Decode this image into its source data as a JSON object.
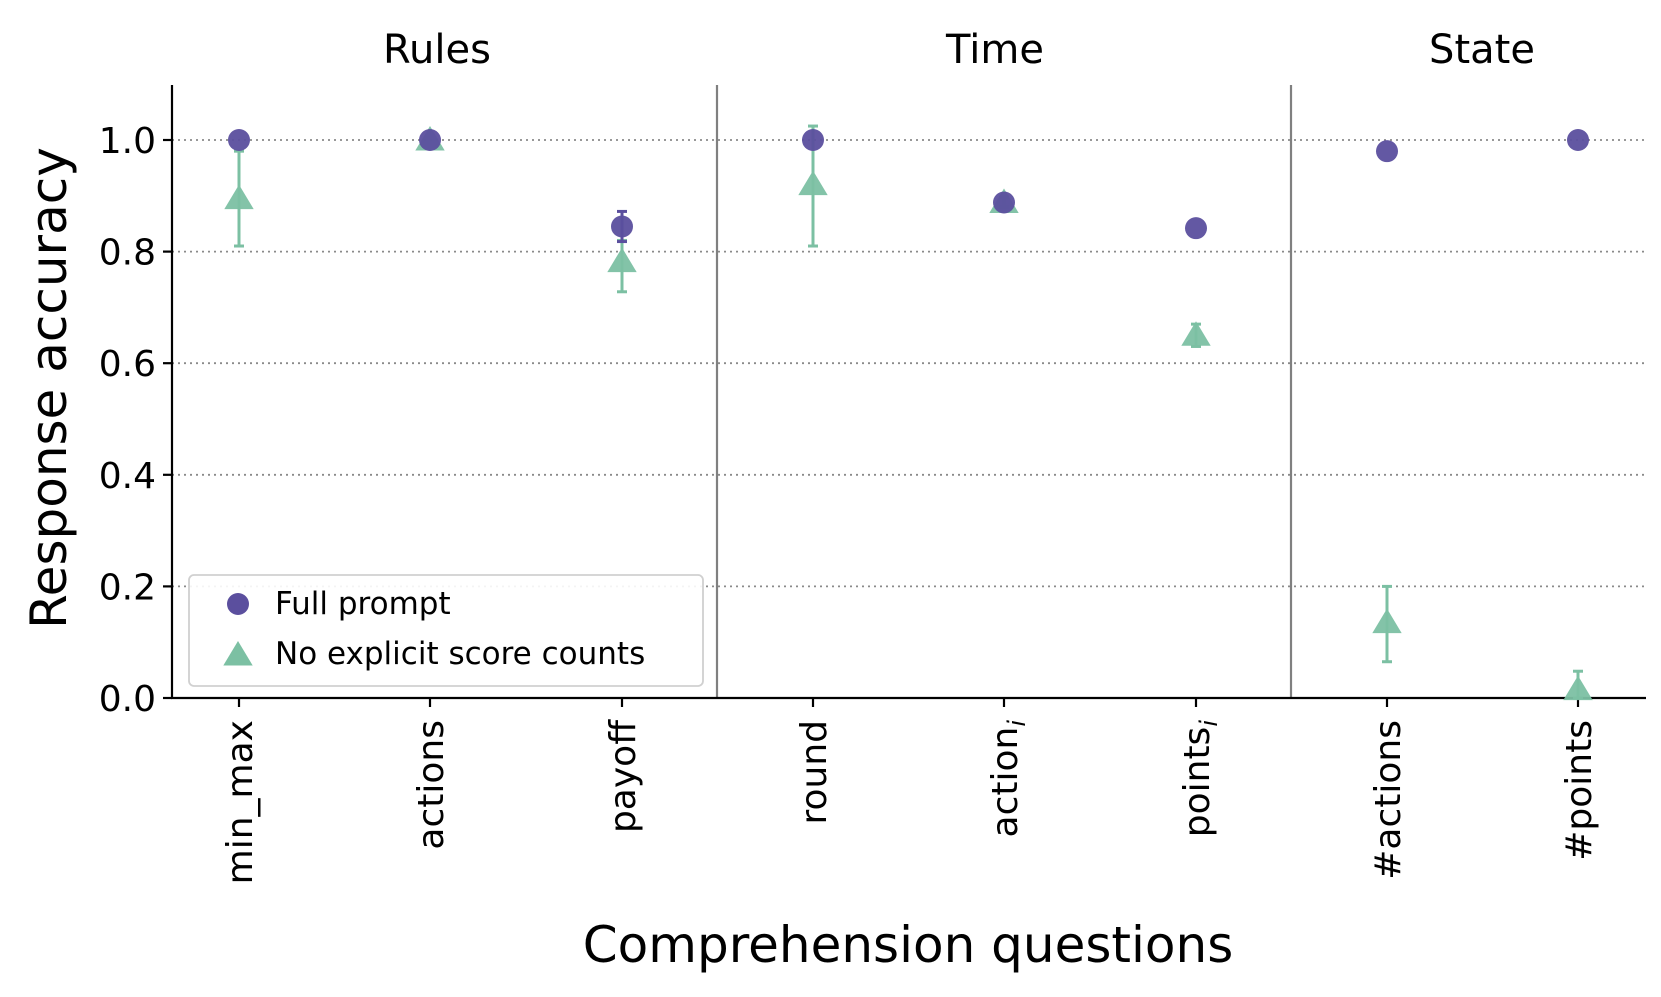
{
  "chart_data": {
    "type": "scatter",
    "xlabel": "Comprehension questions",
    "ylabel": "Response accuracy",
    "ylim": [
      0,
      1.1
    ],
    "yticks": [
      "0.0",
      "0.2",
      "0.4",
      "0.6",
      "0.8",
      "1.0"
    ],
    "grid": "horizontal dotted",
    "legend_position": "lower-left",
    "groups": [
      {
        "title": "Rules",
        "categories": [
          "min_max",
          "actions",
          "payoff"
        ]
      },
      {
        "title": "Time",
        "categories": [
          "round",
          "action_i",
          "points_i"
        ]
      },
      {
        "title": "State",
        "categories": [
          "#actions",
          "#points"
        ]
      }
    ],
    "categories": [
      "min_max",
      "actions",
      "payoff",
      "round",
      "action_i",
      "points_i",
      "#actions",
      "#points"
    ],
    "series": [
      {
        "name": "Full prompt",
        "marker": "circle",
        "color": "#5b4f9e",
        "values": [
          1.0,
          1.0,
          0.845,
          1.0,
          0.888,
          0.842,
          0.98,
          1.0
        ],
        "err_low": [
          1.0,
          1.0,
          0.818,
          1.0,
          0.888,
          0.842,
          0.98,
          1.0
        ],
        "err_high": [
          1.0,
          1.0,
          0.872,
          1.0,
          0.888,
          0.842,
          0.98,
          1.0
        ]
      },
      {
        "name": "No explicit score counts",
        "marker": "triangle",
        "color": "#7cc0a3",
        "values": [
          0.895,
          1.0,
          0.782,
          0.92,
          0.888,
          0.65,
          0.135,
          0.015
        ],
        "err_low": [
          0.81,
          1.0,
          0.728,
          0.81,
          0.88,
          0.63,
          0.065,
          0.0
        ],
        "err_high": [
          0.98,
          1.0,
          0.82,
          1.025,
          0.898,
          0.67,
          0.2,
          0.048
        ]
      }
    ]
  }
}
